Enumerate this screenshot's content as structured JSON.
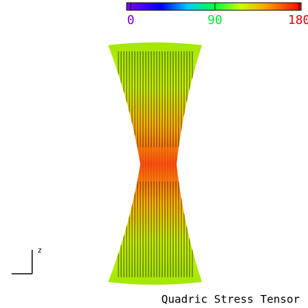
{
  "colorbar": {
    "ticks": [
      0,
      90,
      180
    ]
  },
  "axis_label": "z",
  "caption": "Quadric Stress Tensor"
}
